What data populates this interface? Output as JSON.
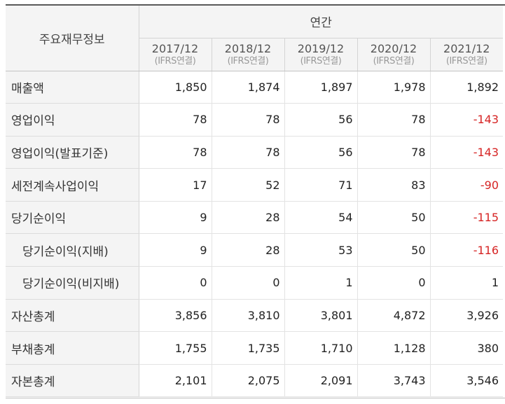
{
  "header": {
    "section_label": "주요재무정보",
    "annual_label": "연간",
    "columns": [
      {
        "year": "2017/12",
        "basis": "(IFRS연결)"
      },
      {
        "year": "2018/12",
        "basis": "(IFRS연결)"
      },
      {
        "year": "2019/12",
        "basis": "(IFRS연결)"
      },
      {
        "year": "2020/12",
        "basis": "(IFRS연결)"
      },
      {
        "year": "2021/12",
        "basis": "(IFRS연결)"
      }
    ]
  },
  "rows": [
    {
      "label": "매출액",
      "indent": false,
      "values": [
        "1,850",
        "1,874",
        "1,897",
        "1,978",
        "1,892"
      ]
    },
    {
      "label": "영업이익",
      "indent": false,
      "values": [
        "78",
        "78",
        "56",
        "78",
        "-143"
      ]
    },
    {
      "label": "영업이익(발표기준)",
      "indent": false,
      "values": [
        "78",
        "78",
        "56",
        "78",
        "-143"
      ]
    },
    {
      "label": "세전계속사업이익",
      "indent": false,
      "values": [
        "17",
        "52",
        "71",
        "83",
        "-90"
      ]
    },
    {
      "label": "당기순이익",
      "indent": false,
      "values": [
        "9",
        "28",
        "54",
        "50",
        "-115"
      ]
    },
    {
      "label": "당기순이익(지배)",
      "indent": true,
      "values": [
        "9",
        "28",
        "53",
        "50",
        "-116"
      ]
    },
    {
      "label": "당기순이익(비지배)",
      "indent": true,
      "values": [
        "0",
        "0",
        "1",
        "0",
        "1"
      ]
    },
    {
      "label": "자산총계",
      "indent": false,
      "values": [
        "3,856",
        "3,810",
        "3,801",
        "4,872",
        "3,926"
      ]
    },
    {
      "label": "부채총계",
      "indent": false,
      "values": [
        "1,755",
        "1,735",
        "1,710",
        "1,128",
        "380"
      ]
    },
    {
      "label": "자본총계",
      "indent": false,
      "values": [
        "2,101",
        "2,075",
        "2,091",
        "3,743",
        "3,546"
      ]
    }
  ],
  "colors": {
    "negative": "#d62424",
    "header_bg": "#f4f4f4",
    "top_rule": "#5a5a5a"
  }
}
